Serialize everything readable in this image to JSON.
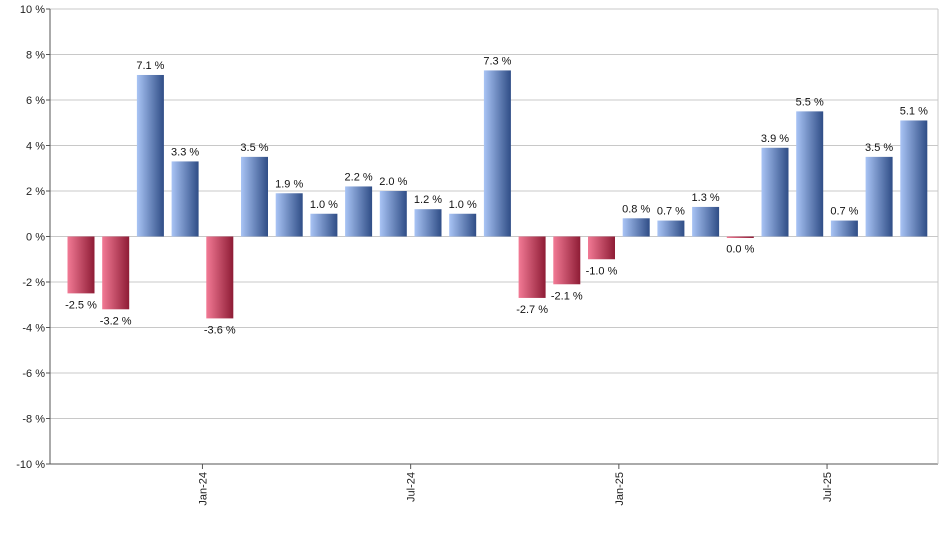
{
  "chart_data": {
    "type": "bar",
    "title": "",
    "xlabel": "",
    "ylabel": "",
    "unit": "%",
    "ylim": [
      -10,
      10
    ],
    "yticks": [
      10,
      8,
      6,
      4,
      2,
      0,
      -2,
      -4,
      -6,
      -8,
      -10
    ],
    "ytick_labels": [
      "10 %",
      "8 %",
      "6 %",
      "4 %",
      "2 %",
      "0 %",
      "-2 %",
      "-4 %",
      "-6 %",
      "-8 %",
      "-10 %"
    ],
    "grid": true,
    "legend": "none",
    "x_ticks": [
      {
        "label": "Jan-24",
        "after_bar": 4
      },
      {
        "label": "Jul-24",
        "after_bar": 10
      },
      {
        "label": "Jan-25",
        "after_bar": 16
      },
      {
        "label": "Jul-25",
        "after_bar": 22
      }
    ],
    "values": [
      -2.5,
      -3.2,
      7.1,
      3.3,
      -3.6,
      3.5,
      1.9,
      1.0,
      2.2,
      2.0,
      1.2,
      1.0,
      7.3,
      -2.7,
      -2.1,
      -1.0,
      0.8,
      0.7,
      1.3,
      0.0,
      3.9,
      5.5,
      0.7,
      3.5,
      5.1
    ],
    "labels": [
      "-2.5 %",
      "-3.2 %",
      "7.1 %",
      "3.3 %",
      "-3.6 %",
      "3.5 %",
      "1.9 %",
      "1.0 %",
      "2.2 %",
      "2.0 %",
      "1.2 %",
      "1.0 %",
      "7.3 %",
      "-2.7 %",
      "-2.1 %",
      "-1.0 %",
      "0.8 %",
      "0.7 %",
      "1.3 %",
      "0.0 %",
      "3.9 %",
      "5.5 %",
      "0.7 %",
      "3.5 %",
      "5.1 %"
    ],
    "colors": {
      "positive_light": "#a9c4f5",
      "positive_dark": "#2f4d86",
      "negative_light": "#f27a95",
      "negative_dark": "#8e1c35",
      "grid": "#c8c8c8",
      "axis": "#555555"
    }
  }
}
